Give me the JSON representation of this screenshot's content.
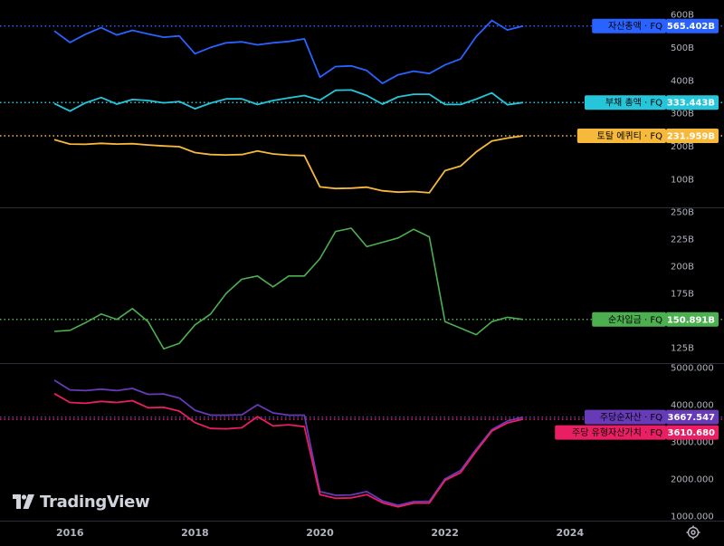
{
  "brand": {
    "name": "TradingView"
  },
  "colors": {
    "background": "#000000",
    "divider": "#2a2e39",
    "axis_text": "#b2b5be",
    "total_assets": "#2962ff",
    "total_liabilities": "#26c6da",
    "total_equity": "#f6b93b",
    "net_borrowing": "#4caf50",
    "bvps": "#673ab7",
    "tbvps": "#e91e63"
  },
  "x_axis": {
    "ticks": [
      "2016",
      "2018",
      "2020",
      "2022",
      "2024"
    ]
  },
  "chart_data": [
    {
      "type": "line",
      "panel": "top",
      "y_ticks": [
        "600B",
        "500B",
        "400B",
        "300B",
        "200B",
        "100B"
      ],
      "ylim": [
        50,
        620
      ],
      "x": [
        2015.75,
        2016.0,
        2016.25,
        2016.5,
        2016.75,
        2017.0,
        2017.25,
        2017.5,
        2017.75,
        2018.0,
        2018.25,
        2018.5,
        2018.75,
        2019.0,
        2019.25,
        2019.5,
        2019.75,
        2020.0,
        2020.25,
        2020.5,
        2020.75,
        2021.0,
        2021.25,
        2021.5,
        2021.75,
        2022.0,
        2022.25,
        2022.5,
        2022.75,
        2023.0,
        2023.25
      ],
      "series": [
        {
          "name": "자산총액 · FQ",
          "last_value": "565.402B",
          "values": [
            550,
            515,
            540,
            560,
            538,
            552,
            541,
            531,
            535,
            481,
            500,
            514,
            517,
            508,
            514,
            518,
            526,
            410,
            442,
            444,
            430,
            391,
            417,
            428,
            421,
            447,
            465,
            533,
            582,
            553,
            565
          ]
        },
        {
          "name": "부채 총액 · FQ",
          "last_value": "333.443B",
          "values": [
            330,
            307,
            332,
            348,
            328,
            342,
            339,
            332,
            336,
            314,
            331,
            344,
            344,
            327,
            339,
            347,
            354,
            340,
            370,
            371,
            354,
            328,
            350,
            358,
            358,
            327,
            327,
            343,
            362,
            326,
            333
          ]
        },
        {
          "name": "토탈 에퀴티 · FQ",
          "last_value": "231.959B",
          "values": [
            220,
            207,
            206,
            209,
            207,
            208,
            204,
            201,
            199,
            181,
            175,
            174,
            175,
            186,
            177,
            173,
            172,
            77,
            72,
            73,
            76,
            65,
            61,
            63,
            59,
            126,
            140,
            183,
            216,
            225,
            232
          ]
        }
      ]
    },
    {
      "type": "line",
      "panel": "middle",
      "y_ticks": [
        "250B",
        "225B",
        "200B",
        "175B",
        "150B",
        "125B"
      ],
      "ylim": [
        120,
        250
      ],
      "x": [
        2015.75,
        2016.0,
        2016.25,
        2016.5,
        2016.75,
        2017.0,
        2017.25,
        2017.5,
        2017.75,
        2018.0,
        2018.25,
        2018.5,
        2018.75,
        2019.0,
        2019.25,
        2019.5,
        2019.75,
        2020.0,
        2020.25,
        2020.5,
        2020.75,
        2021.0,
        2021.25,
        2021.5,
        2021.75,
        2022.0,
        2022.25,
        2022.5,
        2022.75,
        2023.0,
        2023.25
      ],
      "series": [
        {
          "name": "순차입금 · FQ",
          "last_value": "150.891B",
          "values": [
            140,
            141,
            148,
            156,
            151,
            161,
            149,
            124,
            129,
            146,
            156,
            175,
            188,
            191,
            181,
            191,
            191,
            207,
            232,
            235,
            218,
            222,
            226,
            234,
            227,
            149,
            143,
            137,
            149,
            153,
            151
          ]
        }
      ]
    },
    {
      "type": "line",
      "panel": "bottom",
      "y_ticks": [
        "5000.000",
        "4000.000",
        "3000.000",
        "2000.000",
        "1000.000"
      ],
      "ylim": [
        900,
        5150
      ],
      "x": [
        2015.75,
        2016.0,
        2016.25,
        2016.5,
        2016.75,
        2017.0,
        2017.25,
        2017.5,
        2017.75,
        2018.0,
        2018.25,
        2018.5,
        2018.75,
        2019.0,
        2019.25,
        2019.5,
        2019.75,
        2020.0,
        2020.25,
        2020.5,
        2020.75,
        2021.0,
        2021.25,
        2021.5,
        2021.75,
        2022.0,
        2022.25,
        2022.5,
        2022.75,
        2023.0,
        2023.25
      ],
      "series": [
        {
          "name": "주당순자산 · FQ",
          "last_value": "3667.547",
          "values": [
            4660,
            4400,
            4380,
            4420,
            4380,
            4440,
            4280,
            4290,
            4180,
            3850,
            3720,
            3720,
            3730,
            4000,
            3780,
            3720,
            3720,
            1660,
            1560,
            1570,
            1660,
            1410,
            1290,
            1390,
            1400,
            2000,
            2230,
            2800,
            3330,
            3560,
            3668
          ]
        },
        {
          "name": "주당 유형자산가치 · FQ",
          "last_value": "3610.680",
          "values": [
            4300,
            4060,
            4040,
            4090,
            4060,
            4110,
            3920,
            3930,
            3830,
            3520,
            3360,
            3350,
            3380,
            3680,
            3430,
            3460,
            3410,
            1580,
            1480,
            1490,
            1580,
            1360,
            1250,
            1350,
            1350,
            1960,
            2170,
            2750,
            3290,
            3510,
            3611
          ]
        }
      ]
    }
  ]
}
